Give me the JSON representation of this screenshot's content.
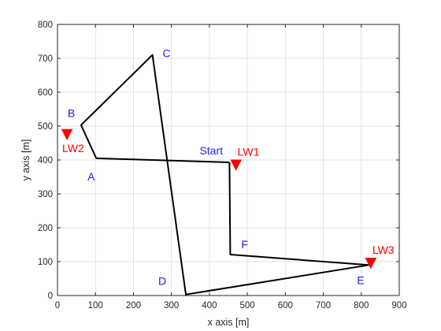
{
  "chart_data": {
    "type": "line",
    "title": "",
    "xlabel": "x axis [m]",
    "ylabel": "y axis [m]",
    "xlim": [
      0,
      900
    ],
    "ylim": [
      0,
      800
    ],
    "xticks": [
      0,
      100,
      200,
      300,
      400,
      500,
      600,
      700,
      800,
      900
    ],
    "yticks": [
      0,
      100,
      200,
      300,
      400,
      500,
      600,
      700,
      800
    ],
    "grid": true,
    "colors": {
      "path": "#000000",
      "point_label": "#1f1fe0",
      "landmark": "#ff0000"
    },
    "series": [
      {
        "points": [
          [
            453,
            393
          ],
          [
            102,
            405
          ],
          [
            62,
            503
          ],
          [
            250,
            710
          ],
          [
            338,
            3
          ],
          [
            820,
            90
          ],
          [
            455,
            121
          ],
          [
            453,
            393
          ]
        ]
      }
    ],
    "point_labels": [
      {
        "text": "Start",
        "x": 453,
        "y": 393
      },
      {
        "text": "A",
        "x": 102,
        "y": 405
      },
      {
        "text": "B",
        "x": 62,
        "y": 503
      },
      {
        "text": "C",
        "x": 250,
        "y": 710
      },
      {
        "text": "D",
        "x": 338,
        "y": 3
      },
      {
        "text": "E",
        "x": 820,
        "y": 90
      },
      {
        "text": "F",
        "x": 455,
        "y": 121
      }
    ],
    "landmarks": [
      {
        "text": "LW1",
        "x": 470,
        "y": 385
      },
      {
        "text": "LW2",
        "x": 25,
        "y": 475
      },
      {
        "text": "LW3",
        "x": 825,
        "y": 95
      }
    ]
  }
}
